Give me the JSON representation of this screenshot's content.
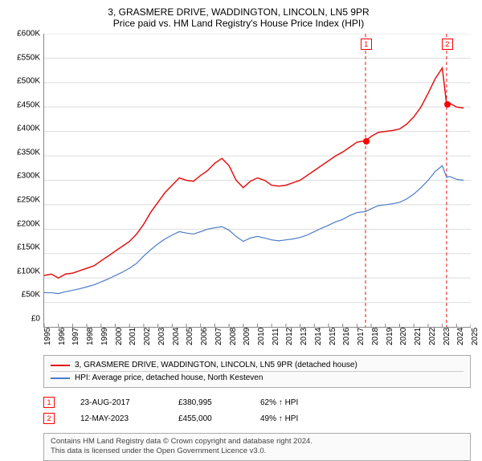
{
  "title": "3, GRASMERE DRIVE, WADDINGTON, LINCOLN, LN5 9PR",
  "subtitle": "Price paid vs. HM Land Registry's House Price Index (HPI)",
  "chart": {
    "type": "line",
    "ylim": [
      0,
      600000
    ],
    "ytick_step": 50000,
    "ytick_labels": [
      "£600K",
      "£550K",
      "£500K",
      "£450K",
      "£400K",
      "£350K",
      "£300K",
      "£250K",
      "£200K",
      "£150K",
      "£100K",
      "£50K",
      "£0"
    ],
    "ytick_values": [
      600000,
      550000,
      500000,
      450000,
      400000,
      350000,
      300000,
      250000,
      200000,
      150000,
      100000,
      50000,
      0
    ],
    "xlim": [
      1995,
      2025
    ],
    "xtick_labels": [
      "1995",
      "1996",
      "1997",
      "1998",
      "1999",
      "2000",
      "2001",
      "2002",
      "2003",
      "2004",
      "2005",
      "2006",
      "2007",
      "2008",
      "2009",
      "2010",
      "2011",
      "2012",
      "2013",
      "2014",
      "2015",
      "2016",
      "2017",
      "2018",
      "2019",
      "2020",
      "2021",
      "2022",
      "2023",
      "2024",
      "2025"
    ],
    "grid_color": "#dddddd",
    "axis_color": "#888888",
    "background_color": "#ffffff",
    "series": [
      {
        "name": "property",
        "label": "3, GRASMERE DRIVE, WADDINGTON, LINCOLN, LN5 9PR (detached house)",
        "color": "#e31212",
        "line_width": 1.5,
        "data": [
          [
            1995,
            105000
          ],
          [
            1995.5,
            108000
          ],
          [
            1996,
            100000
          ],
          [
            1996.5,
            108000
          ],
          [
            1997,
            110000
          ],
          [
            1997.5,
            115000
          ],
          [
            1998,
            120000
          ],
          [
            1998.5,
            125000
          ],
          [
            1999,
            135000
          ],
          [
            1999.5,
            145000
          ],
          [
            2000,
            155000
          ],
          [
            2000.5,
            165000
          ],
          [
            2001,
            175000
          ],
          [
            2001.5,
            190000
          ],
          [
            2002,
            210000
          ],
          [
            2002.5,
            235000
          ],
          [
            2003,
            255000
          ],
          [
            2003.5,
            275000
          ],
          [
            2004,
            290000
          ],
          [
            2004.5,
            305000
          ],
          [
            2005,
            300000
          ],
          [
            2005.5,
            298000
          ],
          [
            2006,
            310000
          ],
          [
            2006.5,
            320000
          ],
          [
            2007,
            335000
          ],
          [
            2007.5,
            345000
          ],
          [
            2008,
            330000
          ],
          [
            2008.5,
            300000
          ],
          [
            2009,
            285000
          ],
          [
            2009.5,
            298000
          ],
          [
            2010,
            305000
          ],
          [
            2010.5,
            300000
          ],
          [
            2011,
            290000
          ],
          [
            2011.5,
            288000
          ],
          [
            2012,
            290000
          ],
          [
            2012.5,
            295000
          ],
          [
            2013,
            300000
          ],
          [
            2013.5,
            310000
          ],
          [
            2014,
            320000
          ],
          [
            2014.5,
            330000
          ],
          [
            2015,
            340000
          ],
          [
            2015.5,
            350000
          ],
          [
            2016,
            358000
          ],
          [
            2016.5,
            368000
          ],
          [
            2017,
            378000
          ],
          [
            2017.6,
            381000
          ],
          [
            2018,
            390000
          ],
          [
            2018.5,
            398000
          ],
          [
            2019,
            400000
          ],
          [
            2019.5,
            402000
          ],
          [
            2020,
            405000
          ],
          [
            2020.5,
            415000
          ],
          [
            2021,
            430000
          ],
          [
            2021.5,
            450000
          ],
          [
            2022,
            478000
          ],
          [
            2022.5,
            508000
          ],
          [
            2023,
            530000
          ],
          [
            2023.3,
            455000
          ],
          [
            2023.5,
            458000
          ],
          [
            2024,
            450000
          ],
          [
            2024.5,
            448000
          ]
        ]
      },
      {
        "name": "hpi",
        "label": "HPI: Average price, detached house, North Kesteven",
        "color": "#4a7bc8",
        "line_width": 1.2,
        "data": [
          [
            1995,
            70000
          ],
          [
            1995.5,
            70000
          ],
          [
            1996,
            68000
          ],
          [
            1996.5,
            72000
          ],
          [
            1997,
            75000
          ],
          [
            1997.5,
            78000
          ],
          [
            1998,
            82000
          ],
          [
            1998.5,
            86000
          ],
          [
            1999,
            92000
          ],
          [
            1999.5,
            98000
          ],
          [
            2000,
            105000
          ],
          [
            2000.5,
            112000
          ],
          [
            2001,
            120000
          ],
          [
            2001.5,
            130000
          ],
          [
            2002,
            145000
          ],
          [
            2002.5,
            158000
          ],
          [
            2003,
            170000
          ],
          [
            2003.5,
            180000
          ],
          [
            2004,
            188000
          ],
          [
            2004.5,
            195000
          ],
          [
            2005,
            192000
          ],
          [
            2005.5,
            190000
          ],
          [
            2006,
            195000
          ],
          [
            2006.5,
            200000
          ],
          [
            2007,
            203000
          ],
          [
            2007.5,
            205000
          ],
          [
            2008,
            198000
          ],
          [
            2008.5,
            185000
          ],
          [
            2009,
            175000
          ],
          [
            2009.5,
            182000
          ],
          [
            2010,
            185000
          ],
          [
            2010.5,
            182000
          ],
          [
            2011,
            178000
          ],
          [
            2011.5,
            176000
          ],
          [
            2012,
            178000
          ],
          [
            2012.5,
            180000
          ],
          [
            2013,
            183000
          ],
          [
            2013.5,
            188000
          ],
          [
            2014,
            195000
          ],
          [
            2014.5,
            202000
          ],
          [
            2015,
            208000
          ],
          [
            2015.5,
            215000
          ],
          [
            2016,
            220000
          ],
          [
            2016.5,
            228000
          ],
          [
            2017,
            234000
          ],
          [
            2017.6,
            236000
          ],
          [
            2018,
            242000
          ],
          [
            2018.5,
            248000
          ],
          [
            2019,
            250000
          ],
          [
            2019.5,
            252000
          ],
          [
            2020,
            255000
          ],
          [
            2020.5,
            262000
          ],
          [
            2021,
            272000
          ],
          [
            2021.5,
            285000
          ],
          [
            2022,
            300000
          ],
          [
            2022.5,
            318000
          ],
          [
            2023,
            330000
          ],
          [
            2023.3,
            306000
          ],
          [
            2023.5,
            308000
          ],
          [
            2024,
            302000
          ],
          [
            2024.5,
            300000
          ]
        ]
      }
    ],
    "markers": [
      {
        "num": "1",
        "year": 2017.6,
        "box_year": 2017.6,
        "box_y": 578000,
        "dot_y": 381000
      },
      {
        "num": "2",
        "year": 2023.3,
        "box_year": 2023.3,
        "box_y": 578000,
        "dot_y": 455000
      }
    ],
    "vertical_lines": [
      {
        "year": 2017.6,
        "color": "#e31212",
        "dash": "4,3"
      },
      {
        "year": 2023.3,
        "color": "#e31212",
        "dash": "4,3"
      }
    ]
  },
  "legend": {
    "items": [
      {
        "color": "#e31212",
        "label": "3, GRASMERE DRIVE, WADDINGTON, LINCOLN, LN5 9PR (detached house)"
      },
      {
        "color": "#4a7bc8",
        "label": "HPI: Average price, detached house, North Kesteven"
      }
    ]
  },
  "sales": [
    {
      "num": "1",
      "date": "23-AUG-2017",
      "price": "£380,995",
      "delta": "62% ↑ HPI"
    },
    {
      "num": "2",
      "date": "12-MAY-2023",
      "price": "£455,000",
      "delta": "49% ↑ HPI"
    }
  ],
  "footer_line1": "Contains HM Land Registry data © Crown copyright and database right 2024.",
  "footer_line2": "This data is licensed under the Open Government Licence v3.0."
}
